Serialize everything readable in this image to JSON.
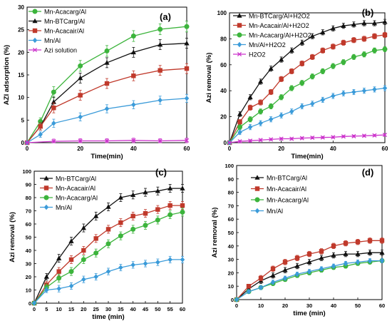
{
  "chart_data": [
    {
      "type": "line",
      "panel_label": "(a)",
      "xlabel": "Time(min)",
      "ylabel": "AZI adsorption (%)",
      "xlim": [
        0,
        60
      ],
      "ylim": [
        0,
        30
      ],
      "xticks": [
        0,
        20,
        40,
        60
      ],
      "yticks": [
        0,
        5,
        10,
        15,
        20,
        25,
        30
      ],
      "legend_position": "top-left",
      "series": [
        {
          "name": "Mn-Acacarg/Al",
          "color": "#3cb43c",
          "marker": "circle",
          "x": [
            0,
            5,
            10,
            20,
            30,
            40,
            50,
            60
          ],
          "y": [
            0,
            4.7,
            11.2,
            17,
            20.3,
            23.6,
            25.1,
            25.7
          ],
          "err": [
            0.3,
            0.8,
            1.2,
            1.2,
            1.2,
            1.2,
            1.2,
            1.2
          ]
        },
        {
          "name": "Mn-BTCarg/Al",
          "color": "#111111",
          "marker": "triangle",
          "x": [
            0,
            5,
            10,
            20,
            30,
            40,
            50,
            60
          ],
          "y": [
            0,
            3.6,
            9,
            14.3,
            17.7,
            20,
            21.7,
            22
          ],
          "err": [
            0.3,
            0.8,
            1.1,
            1.1,
            1.1,
            1.1,
            1.1,
            1.1
          ]
        },
        {
          "name": "Mn-Acacair/Al",
          "color": "#c0392b",
          "marker": "square",
          "x": [
            0,
            5,
            10,
            20,
            30,
            40,
            50,
            60
          ],
          "y": [
            0,
            3.6,
            7.7,
            10.5,
            13.1,
            14.8,
            16,
            16.4
          ],
          "err": [
            0.3,
            0.8,
            1.1,
            1.1,
            1.1,
            1.1,
            1.1,
            1.1
          ]
        },
        {
          "name": "Mn/Al",
          "color": "#3b9bd9",
          "marker": "diamond",
          "x": [
            0,
            5,
            10,
            20,
            30,
            40,
            50,
            60
          ],
          "y": [
            0,
            1.8,
            4.3,
            5.7,
            7.5,
            8.4,
            9.4,
            9.8
          ],
          "err": [
            0.3,
            0.6,
            0.9,
            0.9,
            0.9,
            0.9,
            0.9,
            0.9
          ]
        },
        {
          "name": "Azi solution",
          "color": "#cc33cc",
          "marker": "x",
          "x": [
            0,
            10,
            20,
            30,
            40,
            50,
            60
          ],
          "y": [
            0,
            0.3,
            0.4,
            0.4,
            0.5,
            0.4,
            0.5
          ],
          "err": [
            0.2,
            0.5,
            0.5,
            0.5,
            0.5,
            0.5,
            0.5
          ]
        }
      ]
    },
    {
      "type": "line",
      "panel_label": "(b)",
      "xlabel": "Time(min)",
      "ylabel": "Azi removal (%)",
      "xlim": [
        0,
        60
      ],
      "ylim": [
        0,
        100
      ],
      "xticks": [
        0,
        20,
        40,
        60
      ],
      "yticks": [
        0,
        20,
        40,
        60,
        80,
        100
      ],
      "legend_position": "top-left",
      "series": [
        {
          "name": "Mn-BTCarg/Al+H2O2",
          "color": "#111111",
          "marker": "triangle",
          "x": [
            0,
            4,
            8,
            12,
            16,
            20,
            24,
            28,
            32,
            36,
            40,
            44,
            48,
            52,
            56,
            60
          ],
          "y": [
            0,
            22,
            35,
            47,
            57,
            64,
            71,
            77,
            82,
            85,
            88,
            90,
            91,
            92,
            92,
            93
          ],
          "err": [
            0.5,
            1.8,
            2,
            2,
            2,
            2,
            2,
            2,
            2,
            2,
            2,
            2,
            2,
            2,
            2,
            2
          ]
        },
        {
          "name": "Mn-Acacair/Al+H2O2",
          "color": "#c0392b",
          "marker": "square",
          "x": [
            0,
            4,
            8,
            12,
            16,
            20,
            24,
            28,
            32,
            36,
            40,
            44,
            48,
            52,
            56,
            60
          ],
          "y": [
            0,
            16,
            27,
            31,
            39,
            49,
            55,
            61,
            66,
            71,
            74,
            77,
            79,
            80,
            82,
            83
          ],
          "err": [
            0.5,
            1.8,
            2,
            2,
            2,
            2,
            2,
            2,
            2,
            2,
            2,
            2,
            2,
            2,
            2,
            2
          ]
        },
        {
          "name": "Mn-Acacarg/Al+H2O2",
          "color": "#3cb43c",
          "marker": "circle",
          "x": [
            0,
            4,
            8,
            12,
            16,
            20,
            24,
            28,
            32,
            36,
            40,
            44,
            48,
            52,
            56,
            60
          ],
          "y": [
            0,
            12,
            18,
            24,
            28,
            35,
            42,
            46,
            51,
            55,
            59,
            62,
            66,
            68,
            71,
            72
          ],
          "err": [
            0.5,
            1.8,
            2,
            2,
            2,
            2,
            2,
            2,
            2,
            2,
            2,
            2,
            2,
            2,
            2,
            2
          ]
        },
        {
          "name": "Mn/Al+H2O2",
          "color": "#3b9bd9",
          "marker": "diamond",
          "x": [
            0,
            4,
            8,
            12,
            16,
            20,
            24,
            28,
            32,
            36,
            40,
            44,
            48,
            52,
            56,
            60
          ],
          "y": [
            0,
            8,
            12,
            15,
            18,
            21,
            24,
            28,
            30,
            33,
            36,
            38,
            39,
            40,
            41,
            42
          ],
          "err": [
            0.5,
            1.8,
            2,
            2,
            2,
            2,
            2,
            2,
            2,
            2,
            2,
            2,
            2,
            2,
            2,
            2
          ]
        },
        {
          "name": "H2O2",
          "color": "#cc33cc",
          "marker": "x",
          "x": [
            0,
            4,
            8,
            12,
            16,
            20,
            24,
            28,
            32,
            36,
            40,
            44,
            48,
            52,
            56,
            60
          ],
          "y": [
            0,
            1,
            1.5,
            2,
            2.5,
            3,
            3,
            3.5,
            3.8,
            4,
            4.2,
            4.8,
            5,
            5.3,
            5.6,
            6
          ],
          "err": [
            0.3,
            0.8,
            0.8,
            0.8,
            0.8,
            0.8,
            0.8,
            0.8,
            0.8,
            0.8,
            0.8,
            0.8,
            0.8,
            0.8,
            0.8,
            0.8
          ]
        }
      ]
    },
    {
      "type": "line",
      "panel_label": "(c)",
      "xlabel": "time (min)",
      "ylabel": "Azi removal (%)",
      "xlim": [
        0,
        60
      ],
      "ylim": [
        0,
        100
      ],
      "xticks": [
        0,
        5,
        10,
        15,
        20,
        25,
        30,
        35,
        40,
        45,
        50,
        55,
        60
      ],
      "yticks": [
        0,
        10,
        20,
        30,
        40,
        50,
        60,
        70,
        80,
        90,
        100
      ],
      "legend_position": "top-left",
      "series": [
        {
          "name": "Mn-BTCarg/Al",
          "color": "#111111",
          "marker": "triangle",
          "x": [
            0,
            5,
            10,
            15,
            20,
            25,
            30,
            35,
            40,
            45,
            50,
            55,
            60
          ],
          "y": [
            0,
            20,
            34,
            47,
            57,
            66,
            73,
            80,
            82,
            84,
            85,
            87,
            87
          ],
          "err": [
            0.5,
            2.5,
            3,
            3,
            3,
            3,
            3,
            3,
            3,
            3,
            3,
            3,
            3
          ]
        },
        {
          "name": "Mn-Acacair/Al",
          "color": "#c0392b",
          "marker": "square",
          "x": [
            0,
            5,
            10,
            15,
            20,
            25,
            30,
            35,
            40,
            45,
            50,
            55,
            60
          ],
          "y": [
            0,
            14,
            24,
            33,
            40,
            49,
            56,
            61,
            66,
            68,
            71,
            74,
            74
          ],
          "err": [
            0.5,
            2.5,
            3,
            3,
            3,
            3,
            3,
            3,
            3,
            3,
            3,
            3,
            3
          ]
        },
        {
          "name": "Mn-Acacarg/Al",
          "color": "#3cb43c",
          "marker": "circle",
          "x": [
            0,
            5,
            10,
            15,
            20,
            25,
            30,
            35,
            40,
            45,
            50,
            55,
            60
          ],
          "y": [
            0,
            12,
            19,
            24,
            33,
            38,
            45,
            51,
            56,
            59,
            63,
            67,
            69
          ],
          "err": [
            0.5,
            2.5,
            3,
            3,
            3,
            3,
            3,
            3,
            3,
            3,
            3,
            3,
            3
          ]
        },
        {
          "name": "Mn/Al",
          "color": "#3b9bd9",
          "marker": "diamond",
          "x": [
            0,
            5,
            10,
            15,
            20,
            25,
            30,
            35,
            40,
            45,
            50,
            55,
            60
          ],
          "y": [
            0,
            10,
            11,
            13,
            18,
            20,
            24,
            27,
            29,
            30,
            31,
            33,
            33
          ],
          "err": [
            0.5,
            2,
            2.5,
            2.5,
            2.5,
            2.5,
            2.5,
            2.5,
            2.5,
            2.5,
            2.5,
            2.5,
            2.5
          ]
        }
      ]
    },
    {
      "type": "line",
      "panel_label": "(d)",
      "xlabel": "time (min)",
      "ylabel": "Azi removal (%)",
      "xlim": [
        0,
        60
      ],
      "ylim": [
        0,
        100
      ],
      "xticks": [
        0,
        10,
        20,
        30,
        40,
        50,
        60
      ],
      "yticks": [
        0,
        10,
        20,
        30,
        40,
        50,
        60,
        70,
        80,
        90,
        100
      ],
      "legend_position": "top-left",
      "series": [
        {
          "name": "Mn-BTCarg/Al",
          "color": "#111111",
          "marker": "triangle",
          "x": [
            0,
            5,
            10,
            15,
            20,
            25,
            30,
            35,
            40,
            45,
            50,
            55,
            60
          ],
          "y": [
            0,
            8,
            14,
            18,
            22,
            25,
            28,
            31,
            33,
            34,
            34,
            35,
            35
          ],
          "err": [
            0.5,
            1.5,
            2,
            2,
            2,
            2,
            2,
            2,
            2,
            2,
            2,
            2,
            2
          ]
        },
        {
          "name": "Mn-Acacair/Al",
          "color": "#c0392b",
          "marker": "square",
          "x": [
            0,
            5,
            10,
            15,
            20,
            25,
            30,
            35,
            40,
            45,
            50,
            55,
            60
          ],
          "y": [
            0,
            10,
            16,
            23,
            28,
            31,
            34,
            36,
            40,
            42,
            43,
            44,
            44
          ],
          "err": [
            0.5,
            1.5,
            2,
            2,
            2,
            2,
            2,
            2,
            2,
            2,
            2,
            2,
            2
          ]
        },
        {
          "name": "Mn-Acacarg/Al",
          "color": "#3cb43c",
          "marker": "circle",
          "x": [
            0,
            5,
            10,
            15,
            20,
            25,
            30,
            35,
            40,
            45,
            50,
            55,
            60
          ],
          "y": [
            0,
            6,
            9,
            12,
            15,
            18,
            20,
            22,
            24,
            25,
            27,
            28,
            29
          ],
          "err": [
            0.5,
            1.2,
            1.5,
            1.5,
            1.5,
            1.5,
            1.5,
            1.5,
            1.5,
            1.5,
            1.5,
            1.5,
            1.5
          ]
        },
        {
          "name": "Mn/Al",
          "color": "#3b9bd9",
          "marker": "diamond",
          "x": [
            0,
            5,
            10,
            15,
            20,
            25,
            30,
            35,
            40,
            45,
            50,
            55,
            60
          ],
          "y": [
            0,
            6,
            9,
            13,
            16,
            19,
            21,
            23,
            25,
            27,
            28,
            29,
            29
          ],
          "err": [
            0.5,
            1.2,
            1.5,
            1.5,
            1.5,
            1.5,
            1.5,
            1.5,
            1.5,
            1.5,
            1.5,
            1.5,
            1.5
          ]
        }
      ]
    }
  ]
}
